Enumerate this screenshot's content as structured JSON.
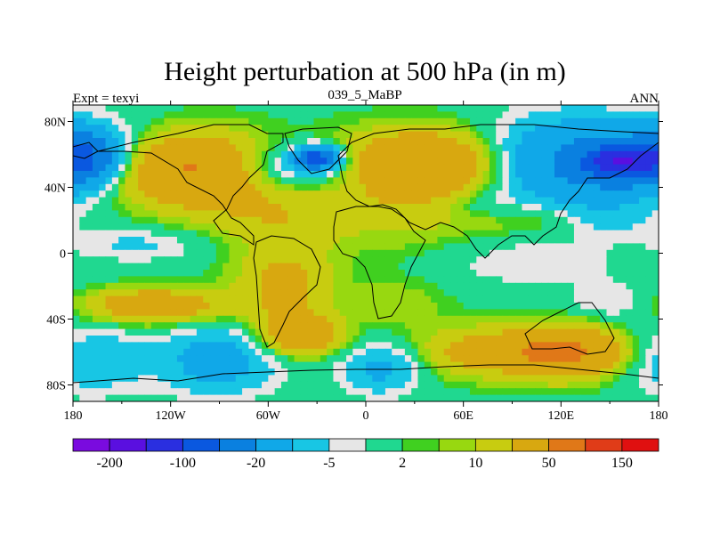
{
  "chart_data": {
    "type": "heatmap",
    "title": "Height perturbation at 500 hPa (in m)",
    "left_label": "Expt = texyi",
    "center_label": "039_5_MaBP",
    "right_label": "ANN",
    "x_ticks": [
      {
        "value": -180,
        "label": "180"
      },
      {
        "value": -120,
        "label": "120W"
      },
      {
        "value": -60,
        "label": "60W"
      },
      {
        "value": 0,
        "label": "0"
      },
      {
        "value": 60,
        "label": "60E"
      },
      {
        "value": 120,
        "label": "120E"
      },
      {
        "value": 180,
        "label": "180"
      }
    ],
    "y_ticks": [
      {
        "value": 80,
        "label": "80N"
      },
      {
        "value": 40,
        "label": "40N"
      },
      {
        "value": 0,
        "label": "0"
      },
      {
        "value": -40,
        "label": "40S"
      },
      {
        "value": -80,
        "label": "80S"
      }
    ],
    "xlim": [
      -180,
      180
    ],
    "ylim": [
      -90,
      90
    ],
    "colorbar": {
      "colors": [
        "#7a0bdf",
        "#5a0fe0",
        "#2a2fe0",
        "#0a58e0",
        "#0a80e0",
        "#10a8e8",
        "#18c6e4",
        "#e6e6e6",
        "#20d890",
        "#40d020",
        "#98d810",
        "#c8cc10",
        "#d8a810",
        "#e07818",
        "#e03c18",
        "#e01010"
      ],
      "tick_labels": [
        {
          "index": 1,
          "label": "-200"
        },
        {
          "index": 3,
          "label": "-100"
        },
        {
          "index": 5,
          "label": "-20"
        },
        {
          "index": 7,
          "label": "-5"
        },
        {
          "index": 9,
          "label": "2"
        },
        {
          "index": 11,
          "label": "10"
        },
        {
          "index": 13,
          "label": "50"
        },
        {
          "index": 15,
          "label": "150"
        }
      ]
    },
    "field_blobs": [
      {
        "lon": -175,
        "lat": 58,
        "rlon": 20,
        "rlat": 14,
        "v": -100
      },
      {
        "lon": -150,
        "lat": 65,
        "rlon": 50,
        "rlat": 20,
        "v": -10
      },
      {
        "lon": -110,
        "lat": 52,
        "rlon": 45,
        "rlat": 22,
        "v": 55
      },
      {
        "lon": -60,
        "lat": 25,
        "rlon": 45,
        "rlat": 18,
        "v": 15
      },
      {
        "lon": -40,
        "lat": 52,
        "rlon": 38,
        "rlat": 14,
        "v": -25
      },
      {
        "lon": -30,
        "lat": 58,
        "rlon": 12,
        "rlat": 6,
        "v": -120
      },
      {
        "lon": 40,
        "lat": 55,
        "rlon": 55,
        "rlat": 20,
        "v": 50
      },
      {
        "lon": 25,
        "lat": 25,
        "rlon": 60,
        "rlat": 25,
        "v": 12
      },
      {
        "lon": 70,
        "lat": 30,
        "rlon": 20,
        "rlat": 8,
        "v": -8
      },
      {
        "lon": 130,
        "lat": 55,
        "rlon": 60,
        "rlat": 25,
        "v": -60
      },
      {
        "lon": 155,
        "lat": 55,
        "rlon": 20,
        "rlat": 10,
        "v": -150
      },
      {
        "lon": 105,
        "lat": 20,
        "rlon": 35,
        "rlat": 10,
        "v": 8
      },
      {
        "lon": 150,
        "lat": 20,
        "rlon": 25,
        "rlat": 10,
        "v": -10
      },
      {
        "lon": -140,
        "lat": 5,
        "rlon": 40,
        "rlat": 10,
        "v": -12
      },
      {
        "lon": 100,
        "lat": -5,
        "rlon": 55,
        "rlat": 15,
        "v": -10
      },
      {
        "lon": -130,
        "lat": -32,
        "rlon": 40,
        "rlat": 10,
        "v": 40
      },
      {
        "lon": -50,
        "lat": -20,
        "rlon": 30,
        "rlat": 28,
        "v": 25
      },
      {
        "lon": -40,
        "lat": -50,
        "rlon": 25,
        "rlat": 12,
        "v": 35
      },
      {
        "lon": 20,
        "lat": -30,
        "rlon": 30,
        "rlat": 15,
        "v": 8
      },
      {
        "lon": 120,
        "lat": -60,
        "rlon": 40,
        "rlat": 15,
        "v": 60
      },
      {
        "lon": 60,
        "lat": -60,
        "rlon": 35,
        "rlat": 15,
        "v": 20
      },
      {
        "lon": -170,
        "lat": -65,
        "rlon": 35,
        "rlat": 20,
        "v": -20
      },
      {
        "lon": -90,
        "lat": -65,
        "rlon": 35,
        "rlat": 20,
        "v": -30
      },
      {
        "lon": 10,
        "lat": -70,
        "rlon": 25,
        "rlat": 15,
        "v": -25
      },
      {
        "lon": 150,
        "lat": -30,
        "rlon": 25,
        "rlat": 12,
        "v": -10
      }
    ]
  }
}
